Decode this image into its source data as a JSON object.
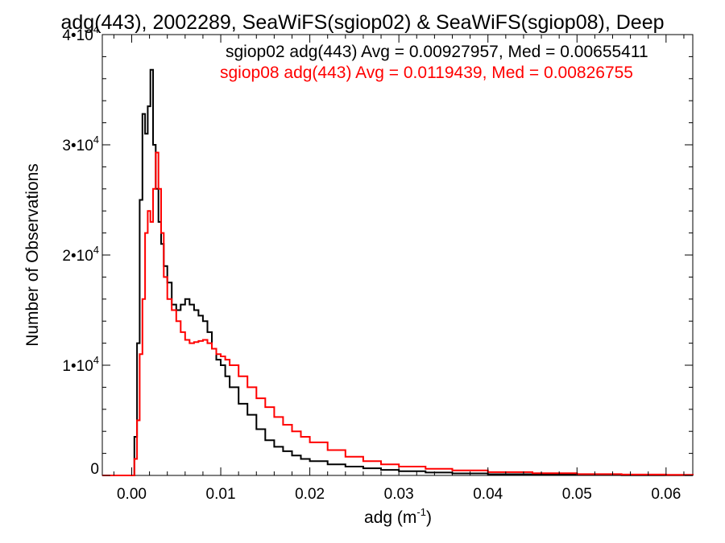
{
  "chart_data": {
    "type": "line",
    "title": "adg(443), 2002289, SeaWiFS(sgiop02) & SeaWiFS(sgiop08), Deep",
    "xlabel": "adg (m",
    "xlabel_superscript": "-1",
    "xlabel_suffix": ")",
    "ylabel": "Number of Observations",
    "xlim": [
      -0.0033,
      0.063
    ],
    "ylim": [
      0,
      40000
    ],
    "x_ticks": [
      {
        "value": 0.0,
        "label": "0.00"
      },
      {
        "value": 0.01,
        "label": "0.01"
      },
      {
        "value": 0.02,
        "label": "0.02"
      },
      {
        "value": 0.03,
        "label": "0.03"
      },
      {
        "value": 0.04,
        "label": "0.04"
      },
      {
        "value": 0.05,
        "label": "0.05"
      },
      {
        "value": 0.06,
        "label": "0.06"
      }
    ],
    "y_ticks": [
      {
        "value": 0,
        "mantissa": "0",
        "exponent": ""
      },
      {
        "value": 10000,
        "mantissa": "1•10",
        "exponent": "4"
      },
      {
        "value": 20000,
        "mantissa": "2•10",
        "exponent": "4"
      },
      {
        "value": 30000,
        "mantissa": "3•10",
        "exponent": "4"
      },
      {
        "value": 40000,
        "mantissa": "4•10",
        "exponent": "4"
      }
    ],
    "grid": false,
    "legend_position": "top-right",
    "series": [
      {
        "name": "sgiop02 adg(443) Avg = 0.00927957, Med = 0.00655411",
        "color": "#000000",
        "x": [
          -0.0033,
          0.0,
          0.0003,
          0.0006,
          0.0009,
          0.0012,
          0.0015,
          0.0018,
          0.0021,
          0.0024,
          0.0027,
          0.003,
          0.0033,
          0.0036,
          0.004,
          0.0045,
          0.005,
          0.0055,
          0.006,
          0.0065,
          0.007,
          0.0075,
          0.008,
          0.0085,
          0.009,
          0.0095,
          0.01,
          0.0105,
          0.011,
          0.012,
          0.013,
          0.014,
          0.015,
          0.016,
          0.017,
          0.018,
          0.019,
          0.02,
          0.022,
          0.024,
          0.026,
          0.028,
          0.03,
          0.033,
          0.036,
          0.04,
          0.045,
          0.05,
          0.055,
          0.06,
          0.063
        ],
        "y": [
          0,
          0,
          3500,
          12000,
          25000,
          32800,
          31000,
          33500,
          36800,
          30000,
          26000,
          23000,
          21000,
          19000,
          17500,
          15500,
          15000,
          15500,
          16000,
          15500,
          15000,
          14500,
          14000,
          13000,
          11500,
          10500,
          10000,
          9000,
          8000,
          6500,
          5500,
          4200,
          3200,
          2600,
          2200,
          1800,
          1500,
          1300,
          1000,
          800,
          650,
          500,
          380,
          260,
          180,
          110,
          70,
          40,
          25,
          15,
          10
        ]
      },
      {
        "name": "sgiop08 adg(443) Avg = 0.0119439, Med = 0.00826755",
        "color": "#ff0000",
        "x": [
          -0.0033,
          0.0,
          0.0003,
          0.0006,
          0.0009,
          0.0012,
          0.0015,
          0.0018,
          0.0021,
          0.0024,
          0.0027,
          0.003,
          0.0033,
          0.0036,
          0.004,
          0.0045,
          0.005,
          0.0055,
          0.006,
          0.0065,
          0.007,
          0.0075,
          0.008,
          0.0085,
          0.009,
          0.0095,
          0.01,
          0.0105,
          0.011,
          0.012,
          0.013,
          0.014,
          0.015,
          0.016,
          0.017,
          0.018,
          0.019,
          0.02,
          0.022,
          0.024,
          0.026,
          0.028,
          0.03,
          0.033,
          0.036,
          0.04,
          0.045,
          0.05,
          0.055,
          0.06,
          0.063
        ],
        "y": [
          0,
          0,
          1500,
          5000,
          11000,
          16000,
          22000,
          24000,
          23000,
          26000,
          29300,
          26000,
          22000,
          18000,
          16000,
          15000,
          14000,
          13000,
          12300,
          12000,
          12100,
          12200,
          12300,
          12000,
          11500,
          11000,
          10800,
          10500,
          10000,
          9000,
          8000,
          7000,
          6200,
          5300,
          4600,
          4000,
          3500,
          3000,
          2300,
          1700,
          1300,
          1000,
          800,
          600,
          450,
          300,
          200,
          120,
          80,
          50,
          30
        ]
      }
    ]
  }
}
